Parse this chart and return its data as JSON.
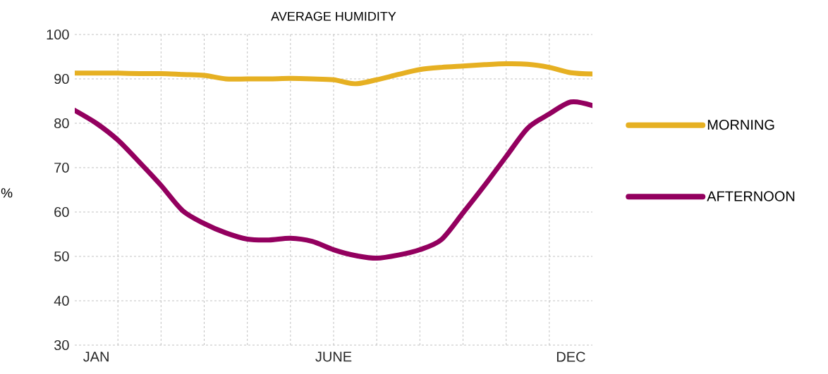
{
  "chart_data": {
    "type": "line",
    "title": "AVERAGE HUMIDITY",
    "ylabel": "%",
    "categories": [
      null,
      "JAN",
      null,
      null,
      null,
      null,
      null,
      null,
      null,
      null,
      null,
      null,
      "JUNE",
      null,
      null,
      null,
      null,
      null,
      null,
      null,
      null,
      null,
      null,
      "DEC",
      null
    ],
    "ylim": [
      30,
      100
    ],
    "yticks": [
      30,
      40,
      50,
      60,
      70,
      80,
      90,
      100
    ],
    "grid": true,
    "legend": "right",
    "series": [
      {
        "name": "MORNING",
        "color": "#e6b022",
        "values": [
          91.3,
          91.3,
          91.3,
          91.2,
          91.2,
          91.0,
          90.8,
          90.0,
          90.0,
          90.0,
          90.1,
          90.0,
          89.8,
          88.9,
          89.8,
          91.0,
          92.1,
          92.6,
          92.9,
          93.2,
          93.4,
          93.3,
          92.6,
          91.4,
          91.1
        ]
      },
      {
        "name": "AFTERNOON",
        "color": "#93005f",
        "values": [
          82.9,
          80.0,
          76.2,
          71.2,
          66.0,
          60.3,
          57.4,
          55.3,
          53.9,
          53.7,
          54.1,
          53.4,
          51.5,
          50.2,
          49.6,
          50.3,
          51.5,
          53.8,
          59.8,
          66.0,
          72.5,
          78.9,
          82.1,
          84.8,
          84.0
        ]
      }
    ]
  }
}
